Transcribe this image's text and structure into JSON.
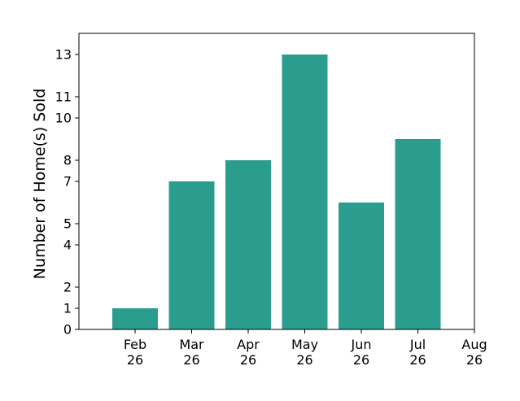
{
  "chart_data": {
    "type": "bar",
    "categories": [
      "Feb 26",
      "Mar 26",
      "Apr 26",
      "May 26",
      "Jun 26",
      "Jul 26"
    ],
    "values": [
      1,
      7,
      8,
      13,
      6,
      9
    ],
    "x_ticks": [
      {
        "line1": "Feb",
        "line2": "26"
      },
      {
        "line1": "Mar",
        "line2": "26"
      },
      {
        "line1": "Apr",
        "line2": "26"
      },
      {
        "line1": "May",
        "line2": "26"
      },
      {
        "line1": "Jun",
        "line2": "26"
      },
      {
        "line1": "Jul",
        "line2": "26"
      },
      {
        "line1": "Aug",
        "line2": "26"
      }
    ],
    "y_ticks": [
      0,
      1,
      2,
      4,
      5,
      7,
      8,
      10,
      11,
      13
    ],
    "ylim": [
      0,
      14
    ],
    "xlabel": "",
    "ylabel": "Number of Home(s) Sold",
    "bar_color": "#2a9d8f",
    "grid": false
  }
}
